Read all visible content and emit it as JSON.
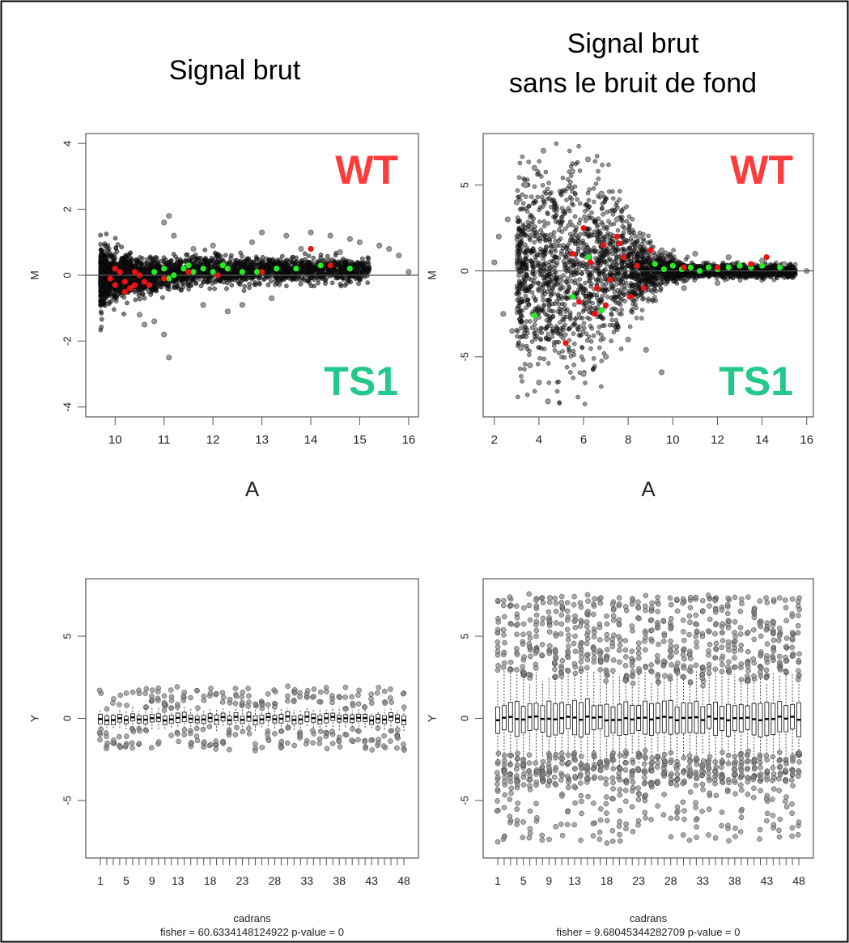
{
  "colors": {
    "wt": "#ff3b3b",
    "ts1": "#22c98a",
    "red_points": "#ee1111",
    "green_points": "#22ee22",
    "black_points": "#000000"
  },
  "column_titles": {
    "left": [
      "Signal brut"
    ],
    "right": [
      "Signal brut",
      "sans le bruit de fond"
    ]
  },
  "chart_data": [
    {
      "id": "ma_raw",
      "type": "scatter",
      "title": "",
      "xlabel": "A",
      "ylabel": "M",
      "xlim": [
        9.4,
        16.2
      ],
      "ylim": [
        -4.3,
        4.3
      ],
      "xticks": [
        10,
        11,
        12,
        13,
        14,
        15,
        16
      ],
      "yticks": [
        -4,
        -2,
        0,
        2,
        4
      ],
      "hline": 0,
      "annotations": {
        "top": "WT",
        "bottom": "TS1"
      },
      "grey_points": [
        [
          10.5,
          -1.2
        ],
        [
          10.8,
          -1.4
        ],
        [
          11.0,
          1.6
        ],
        [
          11.1,
          1.8
        ],
        [
          11.2,
          1.2
        ],
        [
          11.0,
          -1.8
        ],
        [
          11.1,
          -2.5
        ],
        [
          10.6,
          -1.5
        ],
        [
          12.3,
          -1.1
        ],
        [
          12.6,
          -0.9
        ],
        [
          13.0,
          1.3
        ],
        [
          13.5,
          1.2
        ],
        [
          14.0,
          1.3
        ],
        [
          14.4,
          1.2
        ],
        [
          14.8,
          1.1
        ],
        [
          15.0,
          1.0
        ],
        [
          15.4,
          0.9
        ],
        [
          15.6,
          0.8
        ],
        [
          15.8,
          0.6
        ],
        [
          16.0,
          0.1
        ],
        [
          13.8,
          0.8
        ],
        [
          14.6,
          0.7
        ],
        [
          12.0,
          0.9
        ],
        [
          12.8,
          1.0
        ],
        [
          11.6,
          0.8
        ],
        [
          11.8,
          -0.9
        ],
        [
          13.2,
          -0.7
        ]
      ],
      "red_points": [
        [
          10.0,
          -0.3
        ],
        [
          10.2,
          -0.2
        ],
        [
          10.3,
          -0.4
        ],
        [
          10.1,
          0.1
        ],
        [
          10.4,
          -0.3
        ],
        [
          10.5,
          0.0
        ],
        [
          9.9,
          -0.1
        ],
        [
          10.6,
          -0.2
        ],
        [
          10.2,
          -0.5
        ],
        [
          10.4,
          0.1
        ],
        [
          10.0,
          0.2
        ],
        [
          11.0,
          -0.1
        ],
        [
          12.1,
          0.0
        ],
        [
          13.0,
          0.1
        ],
        [
          14.0,
          0.8
        ],
        [
          14.4,
          0.3
        ],
        [
          11.5,
          0.1
        ],
        [
          10.7,
          -0.3
        ]
      ],
      "green_points": [
        [
          10.8,
          0.1
        ],
        [
          11.0,
          0.2
        ],
        [
          11.2,
          0.0
        ],
        [
          11.4,
          0.2
        ],
        [
          11.6,
          0.1
        ],
        [
          11.8,
          0.2
        ],
        [
          12.0,
          0.1
        ],
        [
          12.3,
          0.2
        ],
        [
          12.6,
          0.1
        ],
        [
          12.9,
          0.1
        ],
        [
          13.3,
          0.2
        ],
        [
          13.7,
          0.2
        ],
        [
          14.2,
          0.3
        ],
        [
          14.8,
          0.2
        ],
        [
          11.1,
          -0.1
        ],
        [
          11.5,
          0.3
        ],
        [
          12.2,
          0.3
        ]
      ]
    },
    {
      "id": "ma_bgcorrected",
      "type": "scatter",
      "title": "",
      "xlabel": "A",
      "ylabel": "M",
      "xlim": [
        1.5,
        16.3
      ],
      "ylim": [
        -8.5,
        8.0
      ],
      "xticks": [
        2,
        4,
        6,
        8,
        10,
        12,
        14,
        16
      ],
      "yticks": [
        -5,
        0,
        5
      ],
      "hline": 0,
      "annotations": {
        "top": "WT",
        "bottom": "TS1"
      },
      "grey_points": [
        [
          2.2,
          2.0
        ],
        [
          2.6,
          3.0
        ],
        [
          3.0,
          4.0
        ],
        [
          3.4,
          5.0
        ],
        [
          3.8,
          6.0
        ],
        [
          4.2,
          7.0
        ],
        [
          2.4,
          -2.5
        ],
        [
          2.8,
          -3.5
        ],
        [
          3.2,
          -4.5
        ],
        [
          3.6,
          -5.5
        ],
        [
          4.0,
          -6.5
        ],
        [
          4.4,
          -7.6
        ],
        [
          2.0,
          0.5
        ],
        [
          5.5,
          5.8
        ],
        [
          6.2,
          6.5
        ],
        [
          6.8,
          4.5
        ],
        [
          7.5,
          3.0
        ],
        [
          8.5,
          2.0
        ],
        [
          9.5,
          1.2
        ],
        [
          11.0,
          1.0
        ],
        [
          12.5,
          0.8
        ],
        [
          14.0,
          0.6
        ],
        [
          15.0,
          0.4
        ],
        [
          16.0,
          0.0
        ],
        [
          6.0,
          -6.0
        ],
        [
          7.0,
          -5.0
        ],
        [
          8.0,
          -4.0
        ],
        [
          9.5,
          -5.9
        ],
        [
          8.8,
          -4.6
        ],
        [
          10.5,
          -1.0
        ],
        [
          12.0,
          -0.7
        ]
      ],
      "red_points": [
        [
          5.5,
          1.0
        ],
        [
          6.0,
          2.5
        ],
        [
          6.3,
          0.5
        ],
        [
          6.6,
          -1.0
        ],
        [
          6.9,
          1.5
        ],
        [
          7.2,
          -0.5
        ],
        [
          7.5,
          2.0
        ],
        [
          7.8,
          0.8
        ],
        [
          8.1,
          -1.5
        ],
        [
          8.4,
          0.3
        ],
        [
          6.5,
          -2.5
        ],
        [
          7.0,
          -2.0
        ],
        [
          5.8,
          -1.8
        ],
        [
          5.2,
          -4.2
        ],
        [
          9.0,
          1.2
        ],
        [
          10.5,
          0.2
        ],
        [
          12.0,
          0.2
        ],
        [
          13.5,
          0.4
        ],
        [
          14.2,
          0.8
        ],
        [
          8.7,
          -1.0
        ],
        [
          7.6,
          1.6
        ]
      ],
      "green_points": [
        [
          3.8,
          -2.6
        ],
        [
          5.5,
          -1.5
        ],
        [
          6.2,
          0.8
        ],
        [
          6.8,
          -2.3
        ],
        [
          9.6,
          0.1
        ],
        [
          10.0,
          0.3
        ],
        [
          10.4,
          0.1
        ],
        [
          10.8,
          0.2
        ],
        [
          11.2,
          0.0
        ],
        [
          11.6,
          0.2
        ],
        [
          12.0,
          0.1
        ],
        [
          12.5,
          0.2
        ],
        [
          13.0,
          0.3
        ],
        [
          13.5,
          0.2
        ],
        [
          14.0,
          0.3
        ],
        [
          14.8,
          0.2
        ],
        [
          9.2,
          0.4
        ]
      ]
    },
    {
      "id": "box_raw",
      "type": "box",
      "title": "",
      "xlabel": "cadrans",
      "ylabel": "Y",
      "subtitle": "fisher =  60.6334148124922   p-value =  0",
      "ylim": [
        -8.5,
        8.5
      ],
      "yticks": [
        -5,
        0,
        5
      ],
      "n_boxes": 48,
      "xticklabels": [
        "1",
        "5",
        "9",
        "13",
        "18",
        "23",
        "28",
        "33",
        "38",
        "43",
        "48"
      ],
      "box_spread": 0.25,
      "whisker": 0.6,
      "outlier_extent": 1.5
    },
    {
      "id": "box_bgcorrected",
      "type": "box",
      "title": "",
      "xlabel": "cadrans",
      "ylabel": "Y",
      "subtitle": "fisher =  9.68045344282709   p-value =  0",
      "ylim": [
        -8.5,
        8.5
      ],
      "yticks": [
        -5,
        0,
        5
      ],
      "n_boxes": 48,
      "xticklabels": [
        "1",
        "5",
        "9",
        "13",
        "18",
        "23",
        "28",
        "33",
        "38",
        "43",
        "48"
      ],
      "box_spread": 0.9,
      "whisker": 2.5,
      "outlier_extent": 7.5
    }
  ]
}
